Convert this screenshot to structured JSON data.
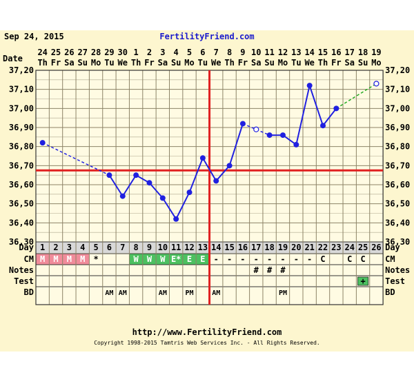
{
  "header": {
    "date": "Sep 24, 2015",
    "site": "FertilityFriend.com"
  },
  "footer": {
    "url": "http://www.FertilityFriend.com",
    "copyright": "Copyright 1998-2015 Tamtris Web Services Inc. - All Rights Reserved."
  },
  "colors": {
    "background": "#fdf6cf",
    "grid": "#8c8366",
    "line": "#2020e0",
    "coverline": "#e02020",
    "ovulation_line": "#e02020",
    "projection": "#22aa22",
    "row_header": "#d8d8d8",
    "menses": "#f08c9a",
    "fertile": "#4cc060",
    "url_text": "#1a1acc"
  },
  "chart_data": {
    "type": "line",
    "title": "",
    "xlabel": "Day",
    "ylabel": "",
    "ylim": [
      36.3,
      37.2
    ],
    "y_ticks": [
      "36,30",
      "36,40",
      "36,50",
      "36,60",
      "36,70",
      "36,80",
      "36,90",
      "37,00",
      "37,10",
      "37,20"
    ],
    "date_label": "Date",
    "dates": [
      "24",
      "25",
      "26",
      "27",
      "28",
      "29",
      "30",
      "1",
      "2",
      "3",
      "4",
      "5",
      "6",
      "7",
      "8",
      "9",
      "10",
      "11",
      "12",
      "13",
      "14",
      "15",
      "16",
      "17",
      "18",
      "19"
    ],
    "weekdays": [
      "Th",
      "Fr",
      "Sa",
      "Su",
      "Mo",
      "Tu",
      "We",
      "Th",
      "Fr",
      "Sa",
      "Su",
      "Mo",
      "Tu",
      "We",
      "Th",
      "Fr",
      "Sa",
      "Su",
      "Mo",
      "Tu",
      "We",
      "Th",
      "Fr",
      "Sa",
      "Su",
      "Mo"
    ],
    "days": [
      "1",
      "2",
      "3",
      "4",
      "5",
      "6",
      "7",
      "8",
      "9",
      "10",
      "11",
      "12",
      "13",
      "14",
      "15",
      "16",
      "17",
      "18",
      "19",
      "20",
      "21",
      "22",
      "23",
      "24",
      "25",
      "26"
    ],
    "temps": [
      36.82,
      null,
      null,
      null,
      null,
      36.65,
      36.54,
      36.65,
      36.61,
      36.53,
      36.42,
      36.56,
      36.74,
      36.62,
      36.7,
      36.92,
      36.89,
      36.86,
      36.86,
      36.81,
      37.12,
      36.91,
      37.0,
      null,
      null,
      37.13
    ],
    "discarded_days": [
      17
    ],
    "projected_days": [
      26
    ],
    "coverline": 36.675,
    "ovulation_day": 14,
    "legend": [],
    "grid": true
  },
  "rows": {
    "cm": {
      "label": "CM",
      "cells": [
        "M",
        "M",
        "M",
        "M",
        "*",
        "",
        "",
        "W",
        "W",
        "W",
        "E*",
        "E",
        "E",
        "-",
        "-",
        "-",
        "-",
        "-",
        "-",
        "-",
        "-",
        "C",
        "",
        "C",
        "C",
        ""
      ]
    },
    "notes": {
      "label": "Notes",
      "cells": [
        "",
        "",
        "",
        "",
        "",
        "",
        "",
        "",
        "",
        "",
        "",
        "",
        "",
        "",
        "",
        "",
        "#",
        "#",
        "#",
        "",
        "",
        "",
        "",
        "",
        "",
        ""
      ]
    },
    "test": {
      "label": "Test",
      "cells": [
        "",
        "",
        "",
        "",
        "",
        "",
        "",
        "",
        "",
        "",
        "",
        "",
        "",
        "",
        "",
        "",
        "",
        "",
        "",
        "",
        "",
        "",
        "",
        "",
        "+",
        ""
      ]
    },
    "bd": {
      "label": "BD",
      "cells": [
        "",
        "",
        "",
        "",
        "",
        "AM",
        "AM",
        "",
        "",
        "AM",
        "",
        "PM",
        "",
        "AM",
        "",
        "",
        "",
        "",
        "PM",
        "",
        "",
        "",
        "",
        "",
        "",
        ""
      ]
    }
  }
}
